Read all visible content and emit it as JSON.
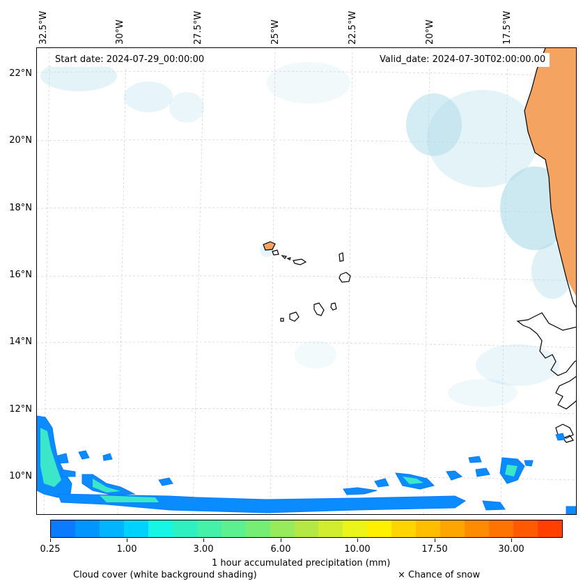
{
  "map": {
    "start_date": "Start date: 2024-07-29_00:00:00",
    "valid_date": "Valid_date: 2024-07-30T02:00:00.00",
    "lon_labels": [
      "32.5°W",
      "30°W",
      "27.5°W",
      "25°W",
      "22.5°W",
      "20°W",
      "17.5°W"
    ],
    "lat_labels": [
      "22°N",
      "20°N",
      "18°N",
      "16°N",
      "14°N",
      "12°N",
      "10°N"
    ]
  },
  "colorbar": {
    "label": "1 hour accumulated precipitation (mm)",
    "tick_labels": [
      "0.25",
      "1.00",
      "3.00",
      "6.00",
      "10.00",
      "17.50",
      "30.00"
    ],
    "colors": [
      "#0a7aff",
      "#0096ff",
      "#00b4ff",
      "#00d2ff",
      "#17f5e4",
      "#2ef0c0",
      "#45f0a8",
      "#5cf090",
      "#76ee73",
      "#96ea5c",
      "#b4e845",
      "#d2ed2e",
      "#ecf51a",
      "#fff000",
      "#ffd500",
      "#ffbe00",
      "#ffa500",
      "#ff8c00",
      "#ff7300",
      "#ff5a00",
      "#ff4000"
    ]
  },
  "legend": {
    "cloud_cover": "Cloud cover (white background shading)",
    "snow": "× Chance of snow"
  },
  "colors": {
    "land_hot": "#f4a460",
    "cloud": "#b0dcea",
    "precip_light": "#0a8cff",
    "precip_mid": "#3ce6c8"
  }
}
